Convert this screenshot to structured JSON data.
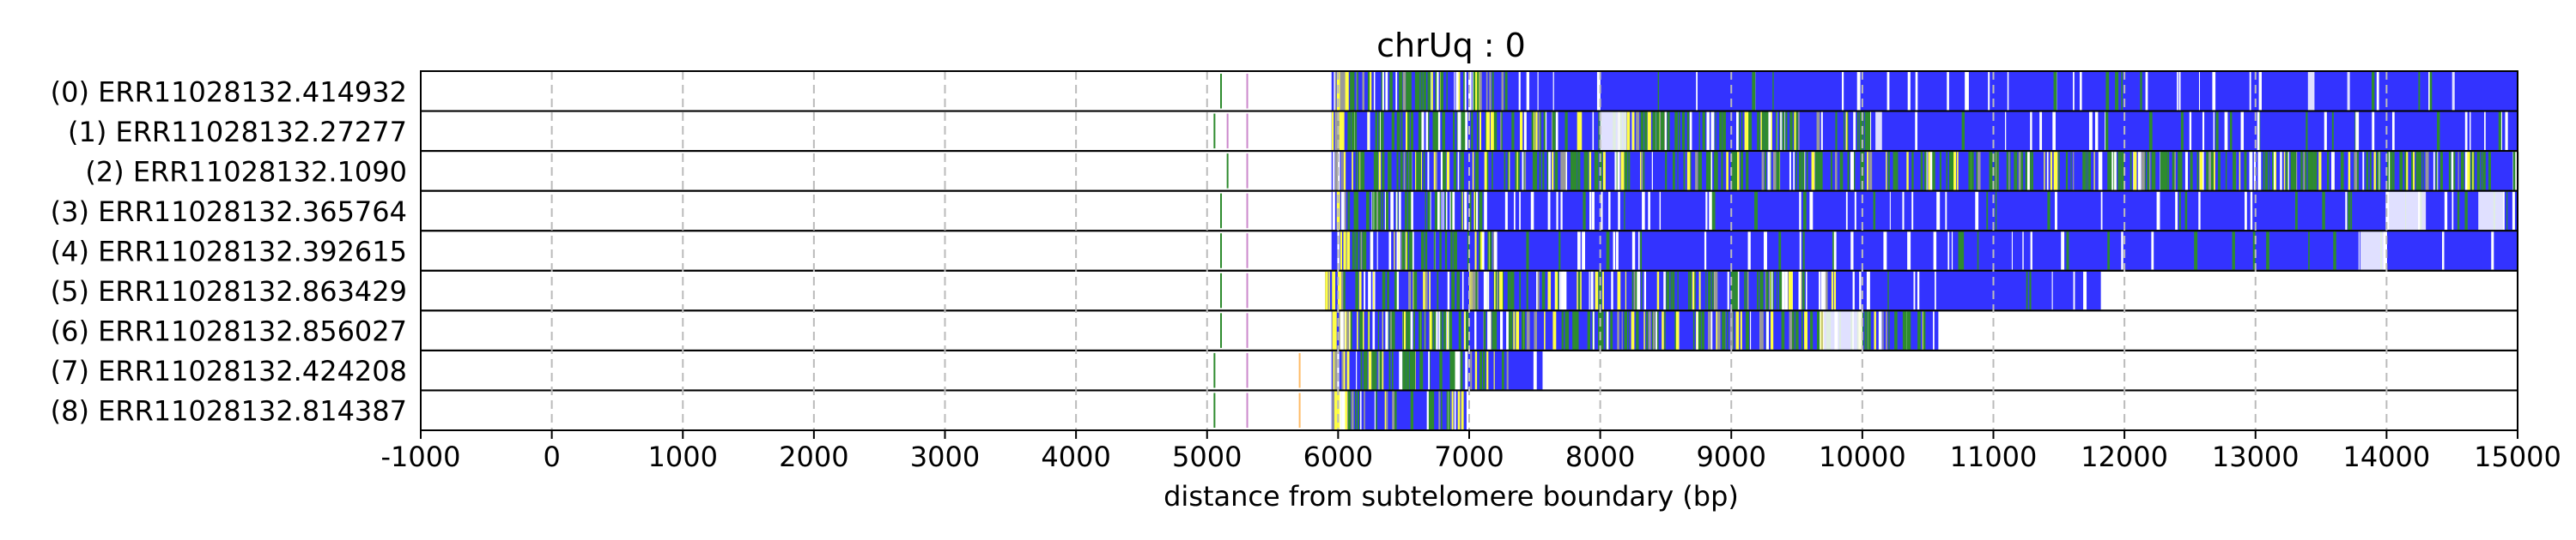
{
  "chart_data": {
    "type": "read-track",
    "title": "chrUq : 0",
    "xlabel": "distance from subtelomere boundary (bp)",
    "ylabel": "",
    "xlim": [
      -1000,
      15000
    ],
    "xticks": [
      -1000,
      0,
      1000,
      2000,
      3000,
      4000,
      5000,
      6000,
      7000,
      8000,
      9000,
      10000,
      11000,
      12000,
      13000,
      14000,
      15000
    ],
    "xgrid": true,
    "colors": {
      "repeat": "#3333ff",
      "green": "#2e8b2e",
      "yellow": "#ffff44",
      "white": "#ffffff",
      "cyan": "#66cccc",
      "gray": "#999999",
      "pink": "#cc88cc",
      "orange": "#ffbb66"
    },
    "reads": [
      {
        "label": "(0) ERR11028132.414932",
        "start": 5950,
        "end": 15000,
        "markers": [
          5100,
          5300
        ],
        "gaps": [
          [
            13400,
            13450
          ],
          [
            13700,
            13720
          ],
          [
            14500,
            14520
          ]
        ],
        "green_end": 7300
      },
      {
        "label": "(1) ERR11028132.27277",
        "start": 5950,
        "end": 15000,
        "markers": [
          5050,
          5150,
          5300
        ],
        "gaps": [
          [
            8000,
            8200
          ],
          [
            10100,
            10150
          ]
        ],
        "green_end": 10100
      },
      {
        "label": "(2) ERR11028132.1090",
        "start": 5950,
        "end": 15000,
        "markers": [
          5150,
          5300
        ],
        "gaps": [],
        "green_end": 15000
      },
      {
        "label": "(3) ERR11028132.365764",
        "start": 5950,
        "end": 15000,
        "markers": [
          5100,
          5300
        ],
        "gaps": [
          [
            14000,
            14300
          ],
          [
            14700,
            14900
          ]
        ],
        "green_end": 7300
      },
      {
        "label": "(4) ERR11028132.392615",
        "start": 5950,
        "end": 15000,
        "markers": [
          5100,
          5300
        ],
        "gaps": [
          [
            13800,
            14000
          ]
        ],
        "green_end": 7200
      },
      {
        "label": "(5) ERR11028132.863429",
        "start": 5900,
        "end": 11820,
        "markers": [
          5100,
          5300
        ],
        "gaps": [
          [
            9700,
            9720
          ]
        ],
        "green_end": 9800
      },
      {
        "label": "(6) ERR11028132.856027",
        "start": 5950,
        "end": 10580,
        "markers": [
          5100,
          5300
        ],
        "gaps": [
          [
            9700,
            10000
          ]
        ],
        "green_end": 10500
      },
      {
        "label": "(7) ERR11028132.424208",
        "start": 5950,
        "end": 7560,
        "markers": [
          5050,
          5300,
          5700
        ],
        "gaps": [],
        "green_end": 7300
      },
      {
        "label": "(8) ERR11028132.814387",
        "start": 5950,
        "end": 6980,
        "markers": [
          5050,
          5300,
          5700
        ],
        "gaps": [],
        "green_end": 6950
      }
    ]
  }
}
